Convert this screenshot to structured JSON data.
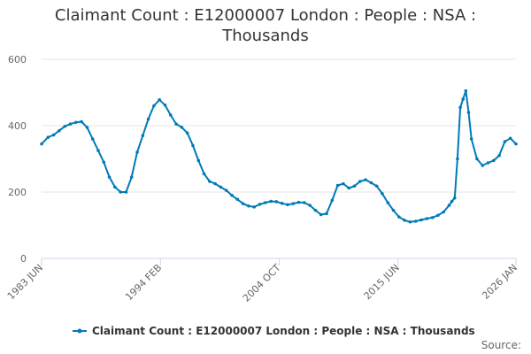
{
  "chart_data": {
    "type": "line",
    "title": "Claimant Count : E12000007 London : People : NSA : Thousands",
    "xlabel": "",
    "ylabel": "",
    "ylim": [
      0,
      600
    ],
    "yticks": [
      0,
      200,
      400,
      600
    ],
    "x_tick_labels": [
      "1983 JUN",
      "1994 FEB",
      "2004 OCT",
      "2015 JUN",
      "2026 JAN"
    ],
    "xlim": [
      "1983 JUN",
      "2026 JAN"
    ],
    "grid": true,
    "legend_position": "bottom",
    "source_label": "Source:",
    "series": [
      {
        "name": "Claimant Count : E12000007 London : People : NSA : Thousands",
        "color": "#007ab8",
        "x": [
          1983.42,
          1984.0,
          1984.5,
          1985.0,
          1985.5,
          1986.0,
          1986.5,
          1987.0,
          1987.5,
          1988.0,
          1988.5,
          1989.0,
          1989.5,
          1990.0,
          1990.5,
          1991.0,
          1991.5,
          1992.0,
          1992.5,
          1993.0,
          1993.5,
          1994.0,
          1994.5,
          1995.0,
          1995.5,
          1996.0,
          1996.5,
          1997.0,
          1997.5,
          1998.0,
          1998.5,
          1999.0,
          1999.5,
          2000.0,
          2000.5,
          2001.0,
          2001.5,
          2002.0,
          2002.5,
          2003.0,
          2003.5,
          2004.0,
          2004.5,
          2005.0,
          2005.5,
          2006.0,
          2006.5,
          2007.0,
          2007.5,
          2008.0,
          2008.5,
          2009.0,
          2009.5,
          2010.0,
          2010.5,
          2011.0,
          2011.5,
          2012.0,
          2012.5,
          2013.0,
          2013.5,
          2014.0,
          2014.5,
          2015.0,
          2015.5,
          2016.0,
          2016.5,
          2017.0,
          2017.5,
          2018.0,
          2018.5,
          2019.0,
          2019.5,
          2020.0,
          2020.25,
          2020.5,
          2020.75,
          2021.0,
          2021.25,
          2021.5,
          2021.75,
          2022.0,
          2022.5,
          2023.0,
          2023.5,
          2024.0,
          2024.5,
          2025.0,
          2025.5,
          2026.0
        ],
        "values": [
          345,
          365,
          372,
          385,
          398,
          405,
          410,
          412,
          395,
          360,
          325,
          290,
          245,
          215,
          200,
          200,
          245,
          320,
          370,
          420,
          460,
          478,
          462,
          432,
          405,
          395,
          378,
          340,
          295,
          255,
          232,
          225,
          215,
          205,
          190,
          178,
          165,
          158,
          155,
          163,
          168,
          172,
          171,
          166,
          162,
          165,
          169,
          168,
          160,
          145,
          132,
          135,
          175,
          220,
          225,
          212,
          218,
          232,
          237,
          228,
          218,
          195,
          168,
          145,
          125,
          115,
          110,
          112,
          116,
          120,
          123,
          130,
          140,
          160,
          172,
          182,
          300,
          455,
          480,
          505,
          440,
          360,
          300,
          280,
          288,
          295,
          310,
          352,
          362,
          345
        ]
      }
    ]
  }
}
